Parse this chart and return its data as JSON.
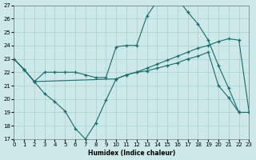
{
  "xlabel": "Humidex (Indice chaleur)",
  "xlim": [
    0,
    23
  ],
  "ylim": [
    17,
    27
  ],
  "xticks": [
    0,
    1,
    2,
    3,
    4,
    5,
    6,
    7,
    8,
    9,
    10,
    11,
    12,
    13,
    14,
    15,
    16,
    17,
    18,
    19,
    20,
    21,
    22,
    23
  ],
  "yticks": [
    17,
    18,
    19,
    20,
    21,
    22,
    23,
    24,
    25,
    26,
    27
  ],
  "bg_color": "#cce8e8",
  "grid_color": "#aacece",
  "line_color": "#1a6b6b",
  "line1_x": [
    0,
    1,
    2,
    3,
    4,
    5,
    6,
    7,
    8,
    9,
    10,
    11,
    12,
    13,
    14,
    15,
    16,
    17,
    18,
    19,
    20,
    21,
    22,
    23
  ],
  "line1_y": [
    23.0,
    22.2,
    21.3,
    20.4,
    19.8,
    19.1,
    17.8,
    17.0,
    18.2,
    19.9,
    21.5,
    21.8,
    22.0,
    22.1,
    22.3,
    22.5,
    22.7,
    23.0,
    23.2,
    23.5,
    21.0,
    20.1,
    19.0,
    19.0
  ],
  "line2_x": [
    0,
    1,
    2,
    3,
    4,
    5,
    6,
    7,
    8,
    9,
    10,
    11,
    12,
    13,
    14,
    15,
    16,
    17,
    18,
    19,
    20,
    21,
    22
  ],
  "line2_y": [
    23.0,
    22.2,
    21.3,
    22.0,
    22.0,
    22.0,
    22.0,
    21.8,
    21.6,
    21.6,
    23.9,
    24.0,
    24.0,
    26.2,
    27.3,
    27.5,
    27.5,
    26.5,
    25.6,
    24.4,
    22.5,
    20.8,
    19.0
  ],
  "line3_x": [
    0,
    1,
    2,
    10,
    11,
    12,
    13,
    14,
    15,
    16,
    17,
    18,
    19,
    20,
    21,
    22,
    23
  ],
  "line3_y": [
    23.0,
    22.2,
    21.3,
    21.5,
    21.8,
    22.0,
    22.3,
    22.6,
    22.9,
    23.2,
    23.5,
    23.8,
    24.0,
    24.3,
    24.5,
    24.4,
    19.0
  ]
}
